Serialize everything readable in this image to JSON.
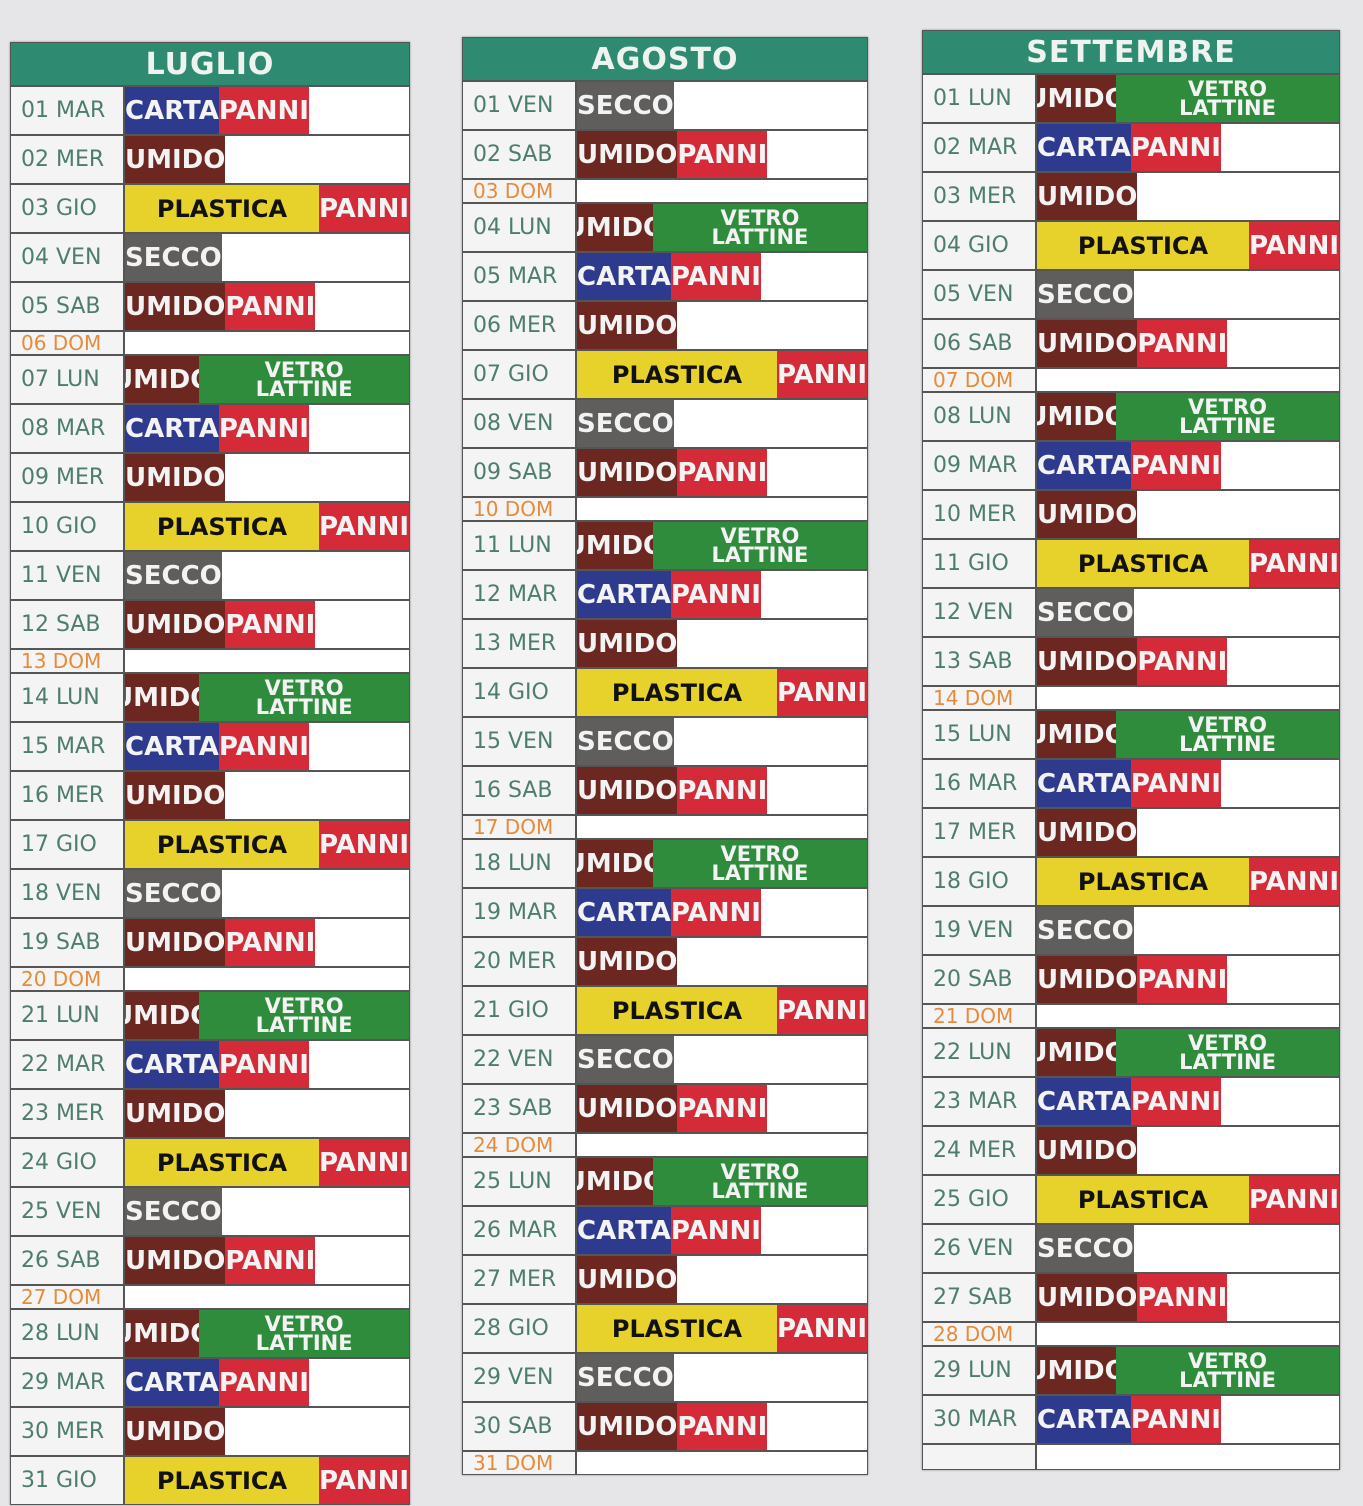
{
  "colors": {
    "CARTA": "#2e3a8e",
    "PANNI": "#d52a37",
    "UMIDO": "#6c2721",
    "PLASTICA": "#e7d22b",
    "SECCO": "#5f5e5c",
    "VETRO LATTINE": "#2f8c3d",
    "header": "#2f8a72"
  },
  "months": [
    {
      "name": "LUGLIO",
      "rows": [
        [
          "01 MAR",
          "CARTA",
          "PANNI"
        ],
        [
          "02 MER",
          "UMIDO"
        ],
        [
          "03 GIO",
          "PLASTICA",
          "PANNI"
        ],
        [
          "04 VEN",
          "SECCO"
        ],
        [
          "05 SAB",
          "UMIDO",
          "PANNI"
        ],
        [
          "06 DOM"
        ],
        [
          "07 LUN",
          "UMIDO",
          "VETRO LATTINE"
        ],
        [
          "08 MAR",
          "CARTA",
          "PANNI"
        ],
        [
          "09 MER",
          "UMIDO"
        ],
        [
          "10 GIO",
          "PLASTICA",
          "PANNI"
        ],
        [
          "11 VEN",
          "SECCO"
        ],
        [
          "12 SAB",
          "UMIDO",
          "PANNI"
        ],
        [
          "13 DOM"
        ],
        [
          "14 LUN",
          "UMIDO",
          "VETRO LATTINE"
        ],
        [
          "15 MAR",
          "CARTA",
          "PANNI"
        ],
        [
          "16 MER",
          "UMIDO"
        ],
        [
          "17 GIO",
          "PLASTICA",
          "PANNI"
        ],
        [
          "18 VEN",
          "SECCO"
        ],
        [
          "19 SAB",
          "UMIDO",
          "PANNI"
        ],
        [
          "20 DOM"
        ],
        [
          "21 LUN",
          "UMIDO",
          "VETRO LATTINE"
        ],
        [
          "22 MAR",
          "CARTA",
          "PANNI"
        ],
        [
          "23 MER",
          "UMIDO"
        ],
        [
          "24 GIO",
          "PLASTICA",
          "PANNI"
        ],
        [
          "25 VEN",
          "SECCO"
        ],
        [
          "26 SAB",
          "UMIDO",
          "PANNI"
        ],
        [
          "27 DOM"
        ],
        [
          "28 LUN",
          "UMIDO",
          "VETRO LATTINE"
        ],
        [
          "29 MAR",
          "CARTA",
          "PANNI"
        ],
        [
          "30 MER",
          "UMIDO"
        ],
        [
          "31 GIO",
          "PLASTICA",
          "PANNI"
        ]
      ]
    },
    {
      "name": "AGOSTO",
      "rows": [
        [
          "01 VEN",
          "SECCO"
        ],
        [
          "02 SAB",
          "UMIDO",
          "PANNI"
        ],
        [
          "03 DOM"
        ],
        [
          "04 LUN",
          "UMIDO",
          "VETRO LATTINE"
        ],
        [
          "05 MAR",
          "CARTA",
          "PANNI"
        ],
        [
          "06 MER",
          "UMIDO"
        ],
        [
          "07 GIO",
          "PLASTICA",
          "PANNI"
        ],
        [
          "08 VEN",
          "SECCO"
        ],
        [
          "09 SAB",
          "UMIDO",
          "PANNI"
        ],
        [
          "10 DOM"
        ],
        [
          "11 LUN",
          "UMIDO",
          "VETRO LATTINE"
        ],
        [
          "12 MAR",
          "CARTA",
          "PANNI"
        ],
        [
          "13 MER",
          "UMIDO"
        ],
        [
          "14 GIO",
          "PLASTICA",
          "PANNI"
        ],
        [
          "15 VEN",
          "SECCO"
        ],
        [
          "16 SAB",
          "UMIDO",
          "PANNI"
        ],
        [
          "17 DOM"
        ],
        [
          "18 LUN",
          "UMIDO",
          "VETRO LATTINE"
        ],
        [
          "19 MAR",
          "CARTA",
          "PANNI"
        ],
        [
          "20 MER",
          "UMIDO"
        ],
        [
          "21 GIO",
          "PLASTICA",
          "PANNI"
        ],
        [
          "22 VEN",
          "SECCO"
        ],
        [
          "23 SAB",
          "UMIDO",
          "PANNI"
        ],
        [
          "24 DOM"
        ],
        [
          "25 LUN",
          "UMIDO",
          "VETRO LATTINE"
        ],
        [
          "26 MAR",
          "CARTA",
          "PANNI"
        ],
        [
          "27 MER",
          "UMIDO"
        ],
        [
          "28 GIO",
          "PLASTICA",
          "PANNI"
        ],
        [
          "29 VEN",
          "SECCO"
        ],
        [
          "30 SAB",
          "UMIDO",
          "PANNI"
        ],
        [
          "31 DOM"
        ]
      ]
    },
    {
      "name": "SETTEMBRE",
      "rows": [
        [
          "01 LUN",
          "UMIDO",
          "VETRO LATTINE"
        ],
        [
          "02 MAR",
          "CARTA",
          "PANNI"
        ],
        [
          "03 MER",
          "UMIDO"
        ],
        [
          "04 GIO",
          "PLASTICA",
          "PANNI"
        ],
        [
          "05 VEN",
          "SECCO"
        ],
        [
          "06 SAB",
          "UMIDO",
          "PANNI"
        ],
        [
          "07 DOM"
        ],
        [
          "08 LUN",
          "UMIDO",
          "VETRO LATTINE"
        ],
        [
          "09 MAR",
          "CARTA",
          "PANNI"
        ],
        [
          "10 MER",
          "UMIDO"
        ],
        [
          "11 GIO",
          "PLASTICA",
          "PANNI"
        ],
        [
          "12 VEN",
          "SECCO"
        ],
        [
          "13 SAB",
          "UMIDO",
          "PANNI"
        ],
        [
          "14 DOM"
        ],
        [
          "15 LUN",
          "UMIDO",
          "VETRO LATTINE"
        ],
        [
          "16 MAR",
          "CARTA",
          "PANNI"
        ],
        [
          "17 MER",
          "UMIDO"
        ],
        [
          "18 GIO",
          "PLASTICA",
          "PANNI"
        ],
        [
          "19 VEN",
          "SECCO"
        ],
        [
          "20 SAB",
          "UMIDO",
          "PANNI"
        ],
        [
          "21 DOM"
        ],
        [
          "22 LUN",
          "UMIDO",
          "VETRO LATTINE"
        ],
        [
          "23 MAR",
          "CARTA",
          "PANNI"
        ],
        [
          "24 MER",
          "UMIDO"
        ],
        [
          "25 GIO",
          "PLASTICA",
          "PANNI"
        ],
        [
          "26 VEN",
          "SECCO"
        ],
        [
          "27 SAB",
          "UMIDO",
          "PANNI"
        ],
        [
          "28 DOM"
        ],
        [
          "29 LUN",
          "UMIDO",
          "VETRO LATTINE"
        ],
        [
          "30 MAR",
          "CARTA",
          "PANNI"
        ],
        [
          ""
        ]
      ]
    }
  ]
}
